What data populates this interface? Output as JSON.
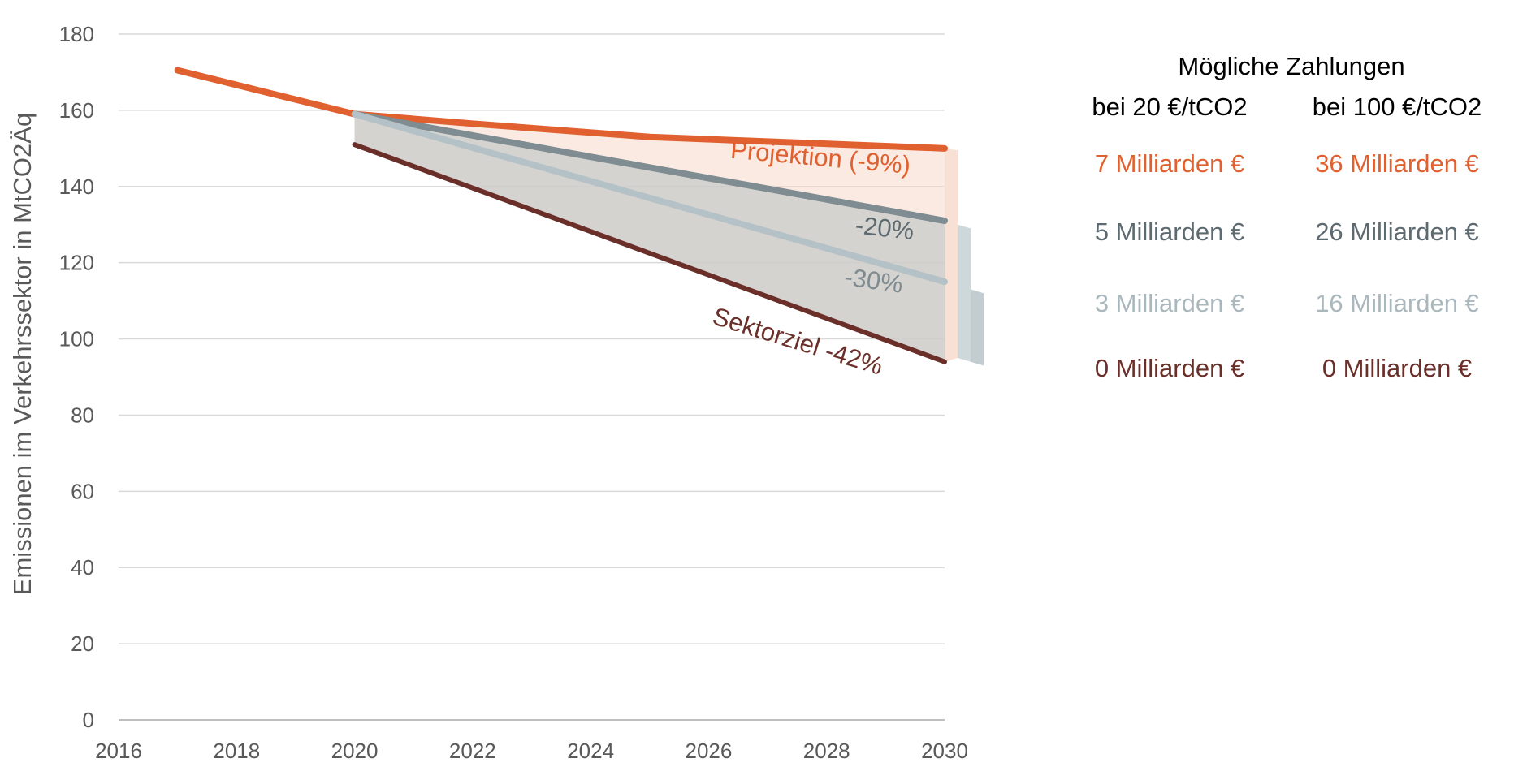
{
  "chart_data": {
    "type": "line",
    "ylabel": "Emissionen im Verkehrssektor in MtCO2Äq",
    "xlabel": "",
    "title": "",
    "xlim": [
      2016,
      2030
    ],
    "ylim": [
      0,
      180
    ],
    "x_ticks": [
      "2016",
      "2018",
      "2020",
      "2022",
      "2024",
      "2026",
      "2028",
      "2030"
    ],
    "y_ticks": [
      "0",
      "20",
      "40",
      "60",
      "80",
      "100",
      "120",
      "140",
      "160",
      "180"
    ],
    "grid": true,
    "series": [
      {
        "label": "Projektion (-9%)",
        "color": "#e0602f",
        "x": [
          2017,
          2020,
          2022,
          2025,
          2030
        ],
        "y": [
          170.5,
          159,
          156.5,
          153,
          150
        ]
      },
      {
        "label": "-20%",
        "color": "#7f8c91",
        "x": [
          2020,
          2030
        ],
        "y": [
          159,
          131
        ]
      },
      {
        "label": "-30%",
        "color": "#b4c1c6",
        "x": [
          2020,
          2030
        ],
        "y": [
          159,
          115
        ]
      },
      {
        "label": "Sektorziel -42%",
        "color": "#6b2f2a",
        "x": [
          2020,
          2030
        ],
        "y": [
          151,
          94
        ]
      }
    ]
  },
  "payments": {
    "title": "Mögliche Zahlungen",
    "col1_header": "bei 20 €/tCO2",
    "col2_header": "bei 100 €/tCO2",
    "rows": [
      {
        "col1": "7 Milliarden €",
        "col2": "36 Milliarden €",
        "color": "#e0602f"
      },
      {
        "col1": "5 Milliarden €",
        "col2": "26 Milliarden €",
        "color": "#5d6a70"
      },
      {
        "col1": "3 Milliarden €",
        "col2": "16 Milliarden €",
        "color": "#aab8bd"
      },
      {
        "col1": "0 Milliarden €",
        "col2": "0 Milliarden €",
        "color": "#6b2f2a"
      }
    ]
  }
}
